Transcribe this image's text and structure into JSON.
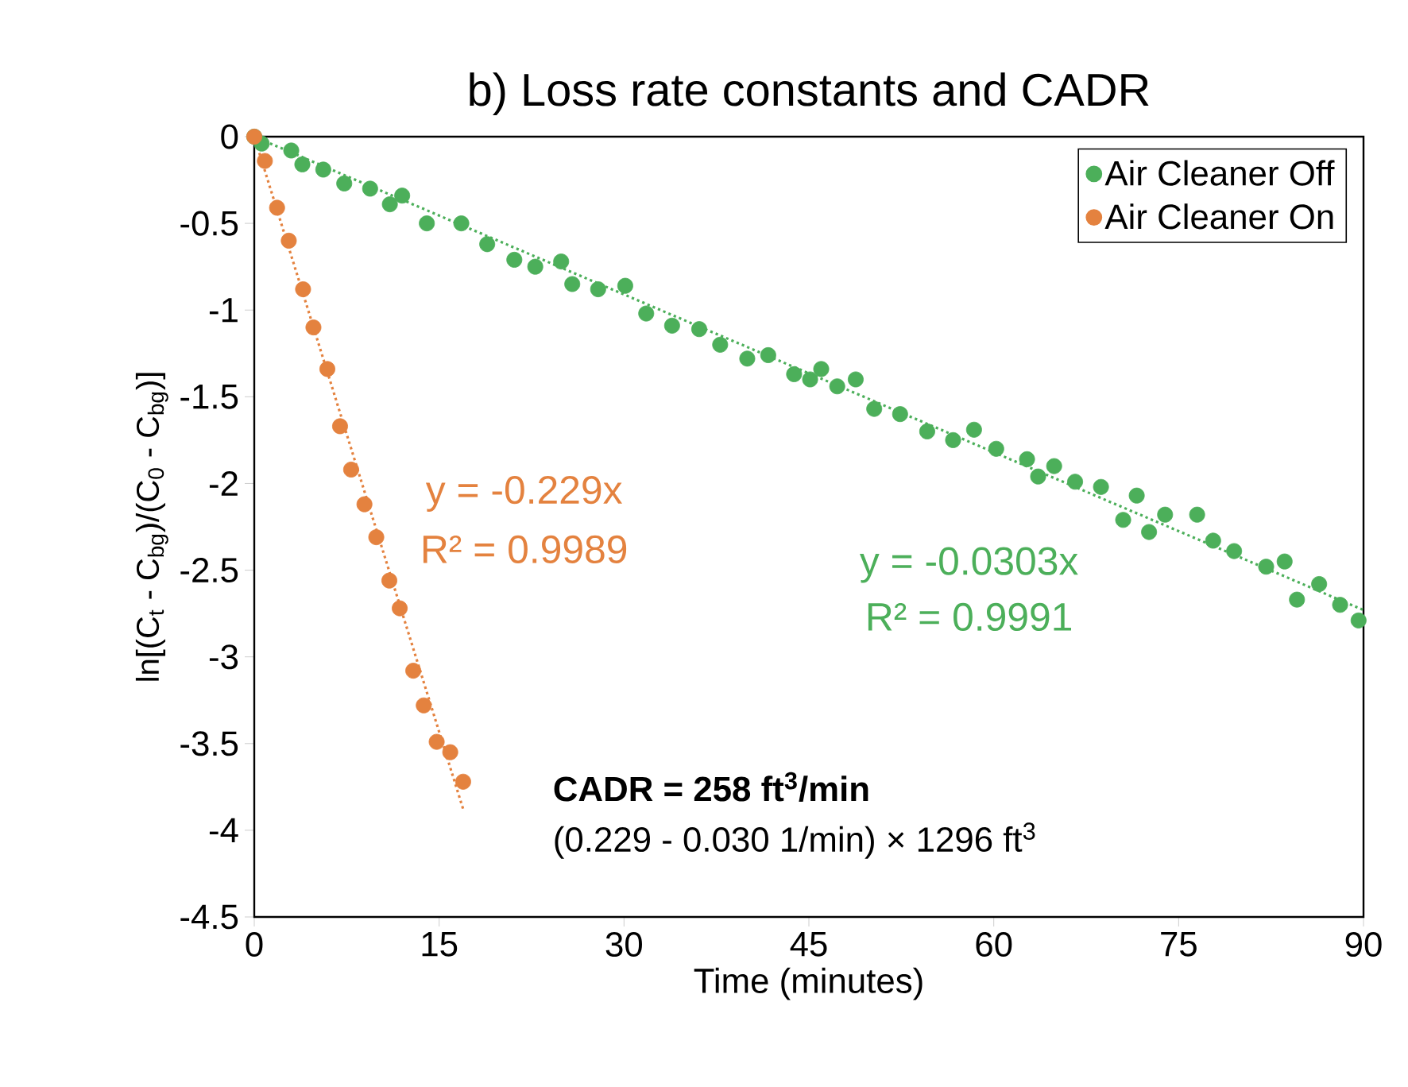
{
  "chart_data": {
    "type": "scatter",
    "title": "b) Loss rate constants and CADR",
    "xlabel": "Time (minutes)",
    "ylabel": "ln[(C$_{t}$ - C$_{bg}$)/(C$_{0}$ - C$_{bg}$)]",
    "xlim": [
      0,
      90
    ],
    "xticks": [
      0,
      15,
      30,
      45,
      60,
      75,
      90
    ],
    "ylim": [
      -4.5,
      0
    ],
    "yticks": [
      -4.5,
      -4,
      -3.5,
      -3,
      -2.5,
      -2,
      -1.5,
      -1,
      -0.5,
      0
    ],
    "grid": false,
    "legend": "top right",
    "series": [
      {
        "name": "Air Cleaner Off",
        "color": "#4caf5a",
        "marker": "circle",
        "x": [
          0,
          0.6,
          3,
          3.9,
          5.6,
          7.3,
          9.4,
          11,
          12,
          14,
          16.8,
          18.9,
          21.1,
          22.8,
          24.9,
          25.8,
          27.9,
          30.1,
          31.8,
          33.9,
          36.1,
          37.8,
          40,
          41.7,
          43.8,
          45.1,
          46,
          47.3,
          48.8,
          50.3,
          52.4,
          54.6,
          56.7,
          58.4,
          60.2,
          62.7,
          63.6,
          64.9,
          66.6,
          68.7,
          70.5,
          71.6,
          72.6,
          73.9,
          76.5,
          77.8,
          79.5,
          82.1,
          83.6,
          84.6,
          86.4,
          88.1,
          89.6
        ],
        "values": [
          0,
          -0.04,
          -0.08,
          -0.16,
          -0.19,
          -0.27,
          -0.3,
          -0.39,
          -0.34,
          -0.5,
          -0.5,
          -0.62,
          -0.71,
          -0.75,
          -0.72,
          -0.85,
          -0.88,
          -0.86,
          -1.02,
          -1.09,
          -1.11,
          -1.2,
          -1.28,
          -1.26,
          -1.37,
          -1.4,
          -1.34,
          -1.44,
          -1.4,
          -1.57,
          -1.6,
          -1.7,
          -1.75,
          -1.69,
          -1.8,
          -1.86,
          -1.96,
          -1.9,
          -1.99,
          -2.02,
          -2.21,
          -2.07,
          -2.28,
          -2.18,
          -2.18,
          -2.33,
          -2.39,
          -2.48,
          -2.45,
          -2.67,
          -2.58,
          -2.7,
          -2.79
        ]
      },
      {
        "name": "Air Cleaner On",
        "color": "#e4823f",
        "marker": "circle",
        "x": [
          0,
          0.86,
          1.85,
          2.8,
          3.96,
          4.8,
          5.93,
          6.96,
          7.86,
          8.94,
          9.9,
          10.96,
          11.8,
          12.9,
          13.75,
          14.8,
          15.9,
          16.95
        ],
        "values": [
          0,
          -0.14,
          -0.41,
          -0.6,
          -0.88,
          -1.1,
          -1.34,
          -1.67,
          -1.92,
          -2.12,
          -2.31,
          -2.56,
          -2.72,
          -3.08,
          -3.28,
          -3.49,
          -3.55,
          -3.72
        ]
      },
      {
        "type": "line",
        "color": "#4caf5a",
        "line_style": "dotted",
        "marker": "none",
        "x": [
          0,
          90
        ],
        "values": [
          0,
          -2.73
        ]
      },
      {
        "type": "line",
        "color": "#e4823f",
        "line_style": "dotted",
        "marker": "none",
        "x": [
          0,
          17
        ],
        "values": [
          0,
          -3.89
        ]
      }
    ],
    "annotations": [
      "y = -0.229x",
      "R² = 0.9989",
      "y = -0.0303x",
      "R² = 0.9991",
      "**CADR = 258 ft$^{3}$/min**",
      "(0.229 - 0.030 1/min) × 1296 ft$^{3}$"
    ]
  }
}
